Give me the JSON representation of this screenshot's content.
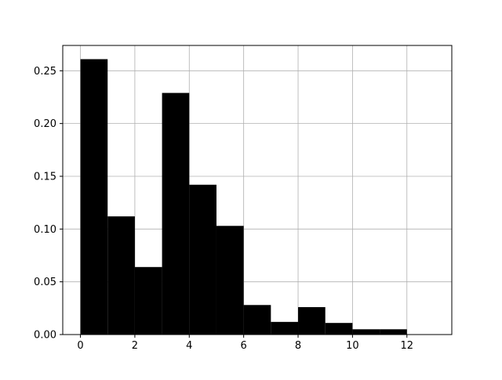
{
  "chart_data": {
    "type": "bar",
    "subtype": "histogram",
    "bins": [
      {
        "x0": 0,
        "x1": 1,
        "value": 0.261
      },
      {
        "x0": 1,
        "x1": 2,
        "value": 0.112
      },
      {
        "x0": 2,
        "x1": 3,
        "value": 0.064
      },
      {
        "x0": 3,
        "x1": 4,
        "value": 0.229
      },
      {
        "x0": 4,
        "x1": 5,
        "value": 0.142
      },
      {
        "x0": 5,
        "x1": 6,
        "value": 0.103
      },
      {
        "x0": 6,
        "x1": 7,
        "value": 0.028
      },
      {
        "x0": 7,
        "x1": 8,
        "value": 0.012
      },
      {
        "x0": 8,
        "x1": 9,
        "value": 0.026
      },
      {
        "x0": 9,
        "x1": 10,
        "value": 0.011
      },
      {
        "x0": 10,
        "x1": 11,
        "value": 0.005
      },
      {
        "x0": 11,
        "x1": 12,
        "value": 0.005
      },
      {
        "x0": 12,
        "x1": 13,
        "value": 0.0
      }
    ],
    "xlim": [
      -0.65,
      13.65
    ],
    "ylim": [
      0.0,
      0.274
    ],
    "xticks": [
      0,
      2,
      4,
      6,
      8,
      10,
      12
    ],
    "xtick_labels": [
      "0",
      "2",
      "4",
      "6",
      "8",
      "10",
      "12"
    ],
    "yticks": [
      0.0,
      0.05,
      0.1,
      0.15,
      0.2,
      0.25
    ],
    "ytick_labels": [
      "0.00",
      "0.05",
      "0.10",
      "0.15",
      "0.20",
      "0.25"
    ],
    "grid": true,
    "bar_color": "#000000",
    "grid_color": "#b0b0b0"
  }
}
